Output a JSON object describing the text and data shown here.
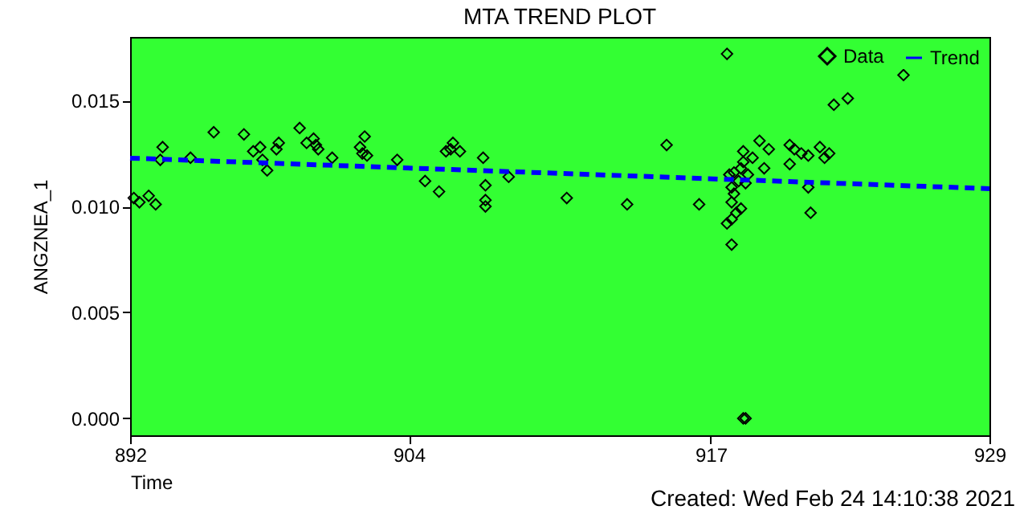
{
  "chart_data": {
    "type": "scatter",
    "title": "MTA TREND PLOT",
    "xlabel": "Time",
    "ylabel": "ANGZNEA_1",
    "annotations": [
      "Created: Wed Feb 24 14:10:38 2021"
    ],
    "xlim": [
      892,
      929
    ],
    "xticks": [
      892,
      904,
      917,
      929
    ],
    "ylim": [
      -0.0008,
      0.018
    ],
    "yticks": [
      {
        "value": 0,
        "label": "0.000"
      },
      {
        "value": 0.005,
        "label": "0.005"
      },
      {
        "value": 0.01,
        "label": "0.010"
      },
      {
        "value": 0.015,
        "label": "0.015"
      }
    ],
    "legend": "top right",
    "grid": false,
    "series": [
      {
        "name": "Data",
        "marker": "diamond",
        "color": "#000000",
        "x": [
          892.16,
          892.4,
          892.8,
          893.1,
          893.4,
          893.3,
          894.6,
          895.6,
          896.9,
          897.3,
          897.6,
          897.7,
          897.9,
          898.3,
          898.4,
          899.3,
          899.6,
          899.9,
          900.0,
          900.1,
          900.7,
          901.9,
          902.1,
          902.0,
          902.2,
          903.5,
          904.7,
          905.3,
          905.6,
          905.8,
          905.9,
          906.2,
          907.2,
          907.3,
          907.3,
          907.3,
          908.3,
          910.8,
          913.4,
          915.1,
          916.5,
          917.7,
          917.9,
          917.7,
          917.9,
          918.1,
          918.3,
          917.9,
          918.0,
          917.9,
          918.2,
          918.0,
          918.3,
          918.4,
          918.4,
          917.8,
          918.5,
          918.6,
          918.8,
          918.5,
          918.4,
          919.1,
          919.5,
          919.3,
          920.4,
          920.6,
          920.4,
          920.9,
          921.2,
          921.2,
          921.3,
          921.7,
          921.9,
          922.1,
          922.3,
          922.9,
          925.3
        ],
        "values": [
          0.0104,
          0.0102,
          0.0105,
          0.0101,
          0.0128,
          0.0122,
          0.0123,
          0.0135,
          0.0134,
          0.0126,
          0.0128,
          0.0122,
          0.0117,
          0.0127,
          0.013,
          0.0137,
          0.013,
          0.0132,
          0.0129,
          0.0127,
          0.0123,
          0.0128,
          0.0133,
          0.0125,
          0.0124,
          0.0122,
          0.0112,
          0.0107,
          0.0126,
          0.0127,
          0.013,
          0.0126,
          0.0123,
          0.011,
          0.0103,
          0.01,
          0.0114,
          0.0104,
          0.0101,
          0.0129,
          0.0101,
          0.0172,
          0.0082,
          0.0092,
          0.0094,
          0.0097,
          0.0099,
          0.0102,
          0.0106,
          0.0109,
          0.0112,
          0.0116,
          0.0118,
          0.0121,
          0.0126,
          0.0115,
          0.0111,
          0.0115,
          0.0123,
          0.0,
          0.0,
          0.0131,
          0.0127,
          0.0118,
          0.0129,
          0.0127,
          0.012,
          0.0125,
          0.0124,
          0.0109,
          0.0097,
          0.0128,
          0.0123,
          0.0125,
          0.0148,
          0.0151,
          0.0162
        ]
      },
      {
        "name": "Trend",
        "type": "line",
        "line_style": "dashed",
        "color": "#0000ff",
        "x": [
          892,
          929
        ],
        "values": [
          0.01228,
          0.01084
        ]
      }
    ]
  }
}
